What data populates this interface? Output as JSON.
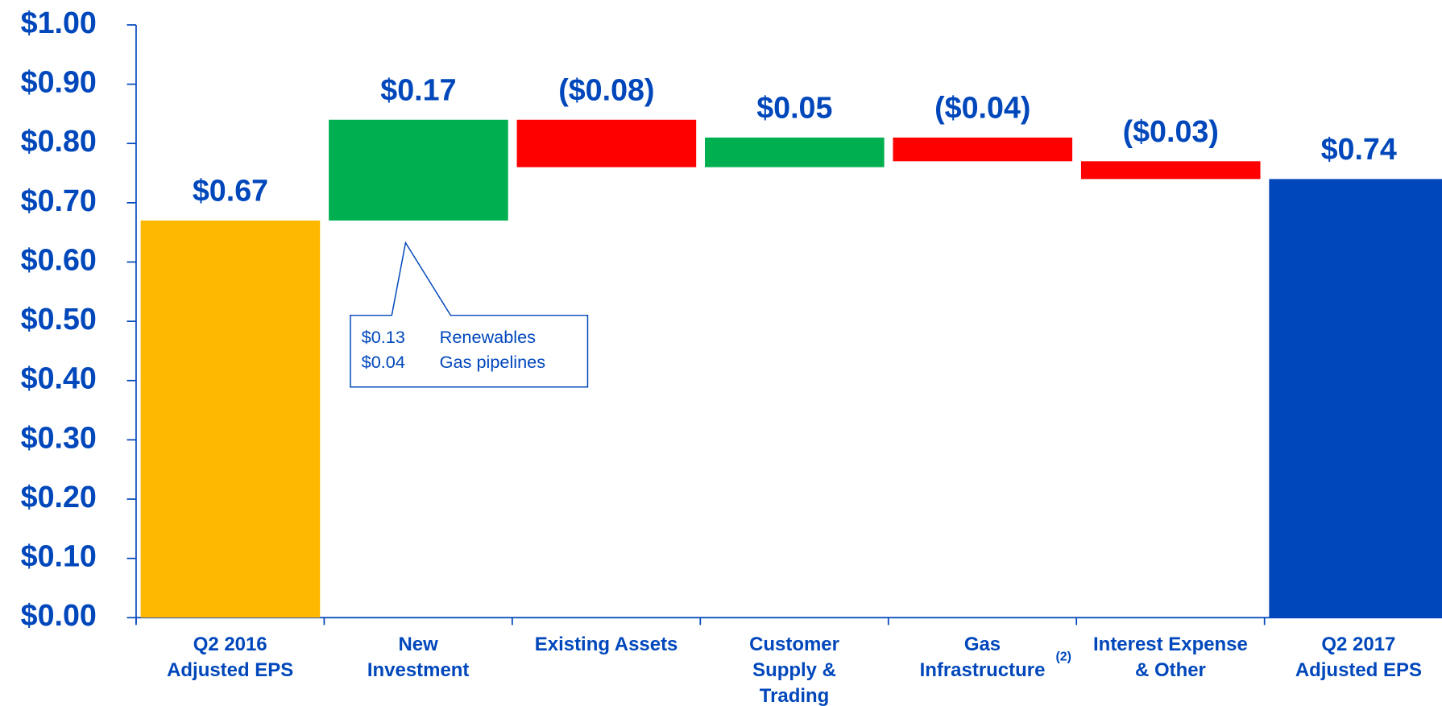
{
  "chart_data": {
    "type": "waterfall",
    "categories": [
      [
        "Q2 2016",
        "Adjusted EPS"
      ],
      [
        "New",
        "Investment"
      ],
      [
        "Existing Assets"
      ],
      [
        "Customer",
        "Supply &",
        "Trading"
      ],
      [
        "Gas",
        "Infrastructure"
      ],
      [
        "Interest Expense",
        "& Other"
      ],
      [
        "Q2 2017",
        "Adjusted EPS"
      ]
    ],
    "category_note": {
      "category": 4,
      "text": "(2)"
    },
    "values": [
      0.67,
      0.17,
      -0.08,
      0.05,
      -0.04,
      -0.03,
      0.74
    ],
    "value_labels": [
      "$0.67",
      "$0.17",
      "($0.08)",
      "$0.05",
      "($0.04)",
      "($0.03)",
      "$0.74"
    ],
    "bar_kinds": [
      "total",
      "delta",
      "delta",
      "delta",
      "delta",
      "delta",
      "total"
    ],
    "colors": [
      "#ffb800",
      "#00b050",
      "#ff0000",
      "#00b050",
      "#ff0000",
      "#ff0000",
      "#0047bb"
    ],
    "ylim": [
      0,
      1.0
    ],
    "yticks": [
      {
        "value": 0,
        "label": "$0.00"
      },
      {
        "value": 0.1,
        "label": "$0.10"
      },
      {
        "value": 0.2,
        "label": "$0.20"
      },
      {
        "value": 0.3,
        "label": "$0.30"
      },
      {
        "value": 0.4,
        "label": "$0.40"
      },
      {
        "value": 0.5,
        "label": "$0.50"
      },
      {
        "value": 0.6,
        "label": "$0.60"
      },
      {
        "value": 0.7,
        "label": "$0.70"
      },
      {
        "value": 0.8,
        "label": "$0.80"
      },
      {
        "value": 0.9,
        "label": "$0.90"
      },
      {
        "value": 1.0,
        "label": "$1.00"
      }
    ],
    "annotation": {
      "lines": [
        [
          "$0.13",
          "Renewables"
        ],
        [
          "$0.04",
          "Gas pipelines"
        ]
      ]
    }
  }
}
